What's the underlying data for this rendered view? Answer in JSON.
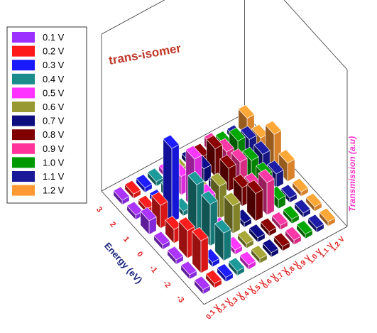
{
  "chart_data": {
    "type": "bar3d",
    "title": "trans-isomer",
    "zlabel": "Transmission (a.u)",
    "ylabel": "Energy (eV)",
    "categories": [
      "3",
      "2",
      "1",
      "0",
      "-1",
      "-2",
      "-3"
    ],
    "series": [
      {
        "name": "0.1 V",
        "color": "#9b30ff",
        "values": [
          0.05,
          0.05,
          0.15,
          0.05,
          0.05,
          0.05,
          0.05
        ]
      },
      {
        "name": "0.2 V",
        "color": "#ff1a1a",
        "values": [
          0.05,
          0.05,
          0.25,
          0.15,
          0.3,
          0.35,
          0.05
        ]
      },
      {
        "name": "0.3 V",
        "color": "#1a1aff",
        "values": [
          0.05,
          0.05,
          0.8,
          0.05,
          0.05,
          0.05,
          0.05
        ]
      },
      {
        "name": "0.4 V",
        "color": "#1a8c8c",
        "values": [
          0.05,
          0.1,
          0.05,
          0.5,
          0.45,
          0.3,
          0.05
        ]
      },
      {
        "name": "0.5 V",
        "color": "#ff33ff",
        "values": [
          0.05,
          0.2,
          0.55,
          0.3,
          0.1,
          0.05,
          0.05
        ]
      },
      {
        "name": "0.6 V",
        "color": "#999933",
        "values": [
          0.05,
          0.1,
          0.1,
          0.35,
          0.3,
          0.05,
          0.05
        ]
      },
      {
        "name": "0.7 V",
        "color": "#0d0d80",
        "values": [
          0.05,
          0.15,
          0.1,
          0.05,
          0.05,
          0.05,
          0.05
        ]
      },
      {
        "name": "0.8 V",
        "color": "#800000",
        "values": [
          0.05,
          0.3,
          0.25,
          0.2,
          0.3,
          0.05,
          0.05
        ]
      },
      {
        "name": "0.9 V",
        "color": "#ff3399",
        "values": [
          0.1,
          0.2,
          0.25,
          0.15,
          0.35,
          0.05,
          0.05
        ]
      },
      {
        "name": "1.0 V",
        "color": "#009900",
        "values": [
          0.05,
          0.25,
          0.2,
          0.2,
          0.1,
          0.05,
          0.05
        ]
      },
      {
        "name": "1.1 V",
        "color": "#1a1a99",
        "values": [
          0.05,
          0.2,
          0.2,
          0.15,
          0.05,
          0.05,
          0.05
        ]
      },
      {
        "name": "1.2 V",
        "color": "#ff9933",
        "values": [
          0.2,
          0.15,
          0.35,
          0.2,
          0.05,
          0.05,
          0.05
        ]
      }
    ]
  }
}
